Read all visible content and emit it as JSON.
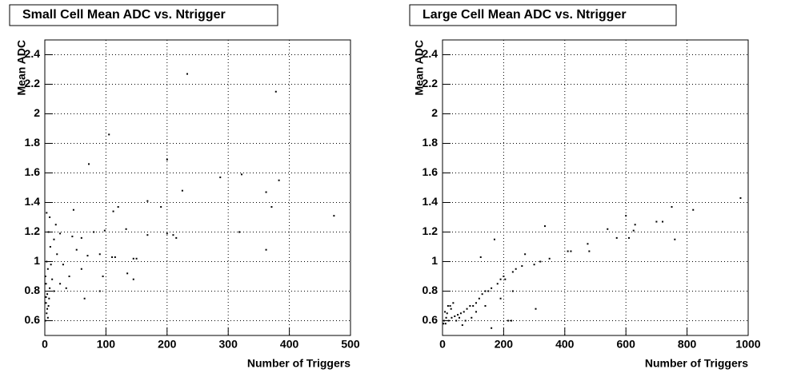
{
  "chart_data": [
    {
      "type": "scatter",
      "title": "Small Cell Mean ADC vs. Ntrigger",
      "x_label": "Number of Triggers",
      "y_label": "Mean ADC",
      "xlim": [
        0,
        500
      ],
      "xticks": [
        0,
        100,
        200,
        300,
        400,
        500
      ],
      "ylim": [
        0.5,
        2.5
      ],
      "yticks": [
        0.6,
        0.8,
        1,
        1.2,
        1.4,
        1.6,
        1.8,
        2,
        2.2,
        2.4
      ],
      "grid": true,
      "color": "#000000",
      "x": [
        233,
        378,
        105,
        72,
        200,
        287,
        322,
        383,
        225,
        362,
        371,
        473,
        168,
        190,
        120,
        112,
        47,
        8,
        3,
        133,
        98,
        80,
        168,
        200,
        210,
        215,
        318,
        362,
        60,
        45,
        25,
        15,
        110,
        115,
        145,
        150,
        52,
        70,
        90,
        135,
        145,
        95,
        60,
        40,
        30,
        20,
        10,
        5,
        12,
        8,
        4,
        2,
        6,
        3,
        1,
        2,
        15,
        65,
        90,
        25,
        35,
        7,
        4,
        1,
        3,
        9,
        18,
        6,
        2,
        5
      ],
      "y": [
        2.27,
        2.15,
        1.86,
        1.66,
        1.69,
        1.57,
        1.59,
        1.55,
        1.48,
        1.47,
        1.37,
        1.31,
        1.41,
        1.37,
        1.37,
        1.34,
        1.35,
        1.3,
        1.33,
        1.22,
        1.21,
        1.2,
        1.18,
        1.19,
        1.18,
        1.16,
        1.2,
        1.08,
        1.16,
        1.17,
        1.19,
        1.15,
        1.03,
        1.03,
        1.02,
        1.02,
        1.08,
        1.04,
        1.05,
        0.92,
        0.88,
        0.9,
        0.95,
        0.9,
        0.98,
        1.05,
        0.98,
        0.95,
        0.88,
        0.82,
        0.78,
        0.72,
        0.7,
        0.65,
        0.6,
        0.85,
        0.8,
        0.75,
        0.8,
        0.85,
        0.82,
        0.75,
        0.68,
        0.9,
        1.0,
        1.1,
        1.25,
        1.2,
        0.76,
        0.62
      ]
    },
    {
      "type": "scatter",
      "title": "Large Cell Mean ADC vs. Ntrigger",
      "x_label": "Number of Triggers",
      "y_label": "Mean ADC",
      "xlim": [
        0,
        1000
      ],
      "xticks": [
        0,
        200,
        400,
        600,
        800,
        1000
      ],
      "ylim": [
        0.5,
        2.5
      ],
      "yticks": [
        0.6,
        0.8,
        1,
        1.2,
        1.4,
        1.6,
        1.8,
        2,
        2.2,
        2.4
      ],
      "grid": true,
      "color": "#000000",
      "x": [
        975,
        750,
        820,
        700,
        720,
        630,
        600,
        540,
        570,
        610,
        760,
        625,
        475,
        480,
        410,
        420,
        335,
        350,
        320,
        300,
        270,
        260,
        240,
        230,
        200,
        205,
        190,
        180,
        160,
        150,
        140,
        130,
        120,
        110,
        100,
        90,
        80,
        70,
        60,
        50,
        40,
        30,
        20,
        10,
        5,
        15,
        25,
        35,
        45,
        55,
        65,
        75,
        170,
        125,
        215,
        225,
        305,
        160,
        12,
        8,
        3,
        18,
        28,
        95,
        110,
        140,
        190,
        230
      ],
      "y": [
        1.43,
        1.37,
        1.35,
        1.27,
        1.27,
        1.25,
        1.31,
        1.22,
        1.16,
        1.16,
        1.15,
        1.21,
        1.12,
        1.07,
        1.07,
        1.07,
        1.24,
        1.02,
        1.0,
        0.98,
        1.05,
        0.97,
        0.95,
        0.93,
        0.9,
        0.88,
        0.88,
        0.85,
        0.82,
        0.8,
        0.8,
        0.78,
        0.75,
        0.72,
        0.7,
        0.7,
        0.68,
        0.66,
        0.65,
        0.64,
        0.63,
        0.62,
        0.6,
        0.58,
        0.6,
        0.65,
        0.7,
        0.72,
        0.6,
        0.62,
        0.57,
        0.6,
        1.15,
        1.03,
        0.6,
        0.6,
        0.68,
        0.55,
        0.62,
        0.66,
        0.58,
        0.7,
        0.68,
        0.62,
        0.66,
        0.7,
        0.75,
        0.8
      ]
    }
  ]
}
